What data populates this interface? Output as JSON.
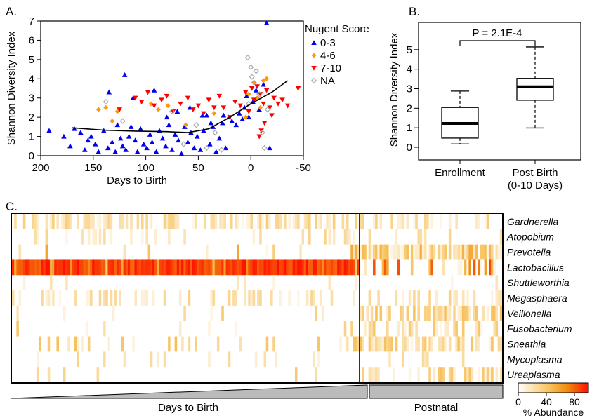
{
  "colors": {
    "cat_0_3": "#0000ee",
    "cat_4_6": "#ff9900",
    "cat_7_10": "#ff0000",
    "cat_na": "#aaaaaa",
    "heat_low": "#ffffff",
    "heat_mid": "#f39c12",
    "heat_high": "#ff1a00",
    "bar_fill": "#bbbbbb"
  },
  "chart_data": [
    {
      "panel": "A.",
      "type": "scatter",
      "xlabel": "Days to Birth",
      "ylabel": "Shannon Diversity Index",
      "x_ticks": [
        "200",
        "150",
        "100",
        "50",
        "0",
        "-50"
      ],
      "y_ticks": [
        "0",
        "1",
        "2",
        "3",
        "4",
        "5",
        "6",
        "7"
      ],
      "xlim": [
        200,
        -50
      ],
      "ylim": [
        0,
        7
      ],
      "legend_title": "Nugent Score",
      "legend_position": "right",
      "series": [
        {
          "name": "0-3",
          "marker": "triangle-up",
          "points": [
            [
              192,
              1.3
            ],
            [
              178,
              1.0
            ],
            [
              172,
              0.5
            ],
            [
              168,
              1.4
            ],
            [
              162,
              1.2
            ],
            [
              158,
              0.3
            ],
            [
              155,
              0.8
            ],
            [
              152,
              1.0
            ],
            [
              148,
              0.6
            ],
            [
              145,
              0.2
            ],
            [
              140,
              1.3
            ],
            [
              136,
              0.4
            ],
            [
              132,
              0.7
            ],
            [
              129,
              0.2
            ],
            [
              127,
              1.6
            ],
            [
              124,
              0.9
            ],
            [
              122,
              0.5
            ],
            [
              119,
              0.3
            ],
            [
              116,
              1.0
            ],
            [
              114,
              1.5
            ],
            [
              110,
              0.8
            ],
            [
              108,
              0.2
            ],
            [
              105,
              1.4
            ],
            [
              102,
              0.6
            ],
            [
              99,
              0.4
            ],
            [
              96,
              1.1
            ],
            [
              94,
              0.7
            ],
            [
              90,
              0.2
            ],
            [
              87,
              1.3
            ],
            [
              84,
              0.9
            ],
            [
              81,
              0.5
            ],
            [
              78,
              1.6
            ],
            [
              75,
              0.3
            ],
            [
              72,
              1.1
            ],
            [
              69,
              0.8
            ],
            [
              66,
              0.1
            ],
            [
              63,
              1.5
            ],
            [
              60,
              0.7
            ],
            [
              57,
              1.2
            ],
            [
              54,
              0.4
            ],
            [
              51,
              1.0
            ],
            [
              48,
              0.3
            ],
            [
              45,
              1.3
            ],
            [
              42,
              2.1
            ],
            [
              39,
              0.6
            ],
            [
              36,
              1.5
            ],
            [
              33,
              0.2
            ],
            [
              30,
              0.9
            ],
            [
              27,
              1.7
            ],
            [
              24,
              0.4
            ],
            [
              21,
              2.0
            ],
            [
              18,
              1.8
            ],
            [
              14,
              1.6
            ],
            [
              11,
              2.2
            ],
            [
              8,
              1.9
            ],
            [
              6,
              2.5
            ],
            [
              4,
              3.1
            ],
            [
              2,
              2.0
            ],
            [
              -2,
              2.8
            ],
            [
              -5,
              3.4
            ],
            [
              -8,
              2.4
            ],
            [
              -12,
              3.7
            ],
            [
              -15,
              6.9
            ],
            [
              -18,
              0.4
            ],
            [
              135,
              3.3
            ],
            [
              120,
              4.2
            ],
            [
              112,
              3.0
            ],
            [
              92,
              3.4
            ],
            [
              80,
              2.0
            ],
            [
              70,
              2.3
            ],
            [
              58,
              2.5
            ],
            [
              46,
              2.1
            ],
            [
              38,
              1.7
            ],
            [
              26,
              2.1
            ]
          ]
        },
        {
          "name": "4-6",
          "marker": "diamond",
          "points": [
            [
              145,
              2.4
            ],
            [
              138,
              2.5
            ],
            [
              132,
              1.8
            ],
            [
              127,
              2.3
            ],
            [
              95,
              2.7
            ],
            [
              88,
              2.4
            ],
            [
              79,
              2.6
            ],
            [
              62,
              1.6
            ],
            [
              35,
              2.2
            ],
            [
              5,
              2.0
            ],
            [
              2,
              3.2
            ],
            [
              -3,
              3.8
            ],
            [
              -6,
              3.0
            ],
            [
              -9,
              2.5
            ],
            [
              -12,
              3.9
            ],
            [
              -15,
              4.0
            ]
          ]
        },
        {
          "name": "7-10",
          "marker": "triangle-down",
          "points": [
            [
              125,
              2.4
            ],
            [
              110,
              3.0
            ],
            [
              104,
              2.8
            ],
            [
              98,
              3.3
            ],
            [
              92,
              2.6
            ],
            [
              85,
              2.9
            ],
            [
              80,
              3.1
            ],
            [
              74,
              2.3
            ],
            [
              67,
              2.7
            ],
            [
              60,
              3.0
            ],
            [
              55,
              2.4
            ],
            [
              50,
              2.6
            ],
            [
              45,
              2.2
            ],
            [
              40,
              2.9
            ],
            [
              35,
              2.5
            ],
            [
              30,
              3.1
            ],
            [
              26,
              2.5
            ],
            [
              20,
              2.0
            ],
            [
              15,
              2.8
            ],
            [
              10,
              2.6
            ],
            [
              5,
              3.3
            ],
            [
              2,
              2.3
            ],
            [
              -1,
              3.5
            ],
            [
              -3,
              2.9
            ],
            [
              -6,
              3.6
            ],
            [
              -9,
              3.2
            ],
            [
              -12,
              2.7
            ],
            [
              -15,
              3.4
            ],
            [
              -18,
              2.5
            ],
            [
              -22,
              3.0
            ],
            [
              -26,
              2.7
            ],
            [
              -30,
              2.9
            ],
            [
              -35,
              2.6
            ],
            [
              -45,
              3.5
            ],
            [
              -10,
              1.3
            ],
            [
              -13,
              1.7
            ],
            [
              -20,
              2.1
            ],
            [
              -8,
              1.0
            ]
          ]
        },
        {
          "name": "NA",
          "marker": "open-diamond",
          "points": [
            [
              138,
              2.8
            ],
            [
              122,
              1.8
            ],
            [
              75,
              2.3
            ],
            [
              64,
              0.6
            ],
            [
              52,
              1.6
            ],
            [
              42,
              0.4
            ],
            [
              34,
              1.2
            ],
            [
              28,
              0.3
            ],
            [
              3,
              5.1
            ],
            [
              0,
              4.6
            ],
            [
              -3,
              3.8
            ],
            [
              -5,
              4.4
            ],
            [
              -8,
              3.2
            ],
            [
              -11,
              1.2
            ],
            [
              -13,
              0.4
            ],
            [
              -16,
              2.4
            ],
            [
              2,
              2.7
            ],
            [
              -1,
              4.1
            ]
          ]
        }
      ],
      "trend_line": [
        [
          170,
          1.45
        ],
        [
          140,
          1.33
        ],
        [
          110,
          1.28
        ],
        [
          80,
          1.25
        ],
        [
          60,
          1.2
        ],
        [
          40,
          1.4
        ],
        [
          20,
          2.0
        ],
        [
          0,
          2.7
        ],
        [
          -20,
          3.3
        ],
        [
          -35,
          3.9
        ]
      ]
    },
    {
      "panel": "B.",
      "type": "box",
      "ylabel": "Shannon Diversity Index",
      "y_ticks": [
        "0",
        "1",
        "2",
        "3",
        "4",
        "5"
      ],
      "ylim": [
        0,
        6
      ],
      "annotation": "P = 2.1E-4",
      "categories": [
        "Enrollment",
        "Post Birth\n(0-10 Days)"
      ],
      "category_lines": [
        [
          "Enrollment"
        ],
        [
          "Post Birth",
          "(0-10 Days)"
        ]
      ],
      "boxes": [
        {
          "min": 0.17,
          "q1": 0.47,
          "median": 1.22,
          "q3": 2.04,
          "max": 2.88
        },
        {
          "min": 0.99,
          "q1": 2.41,
          "median": 3.1,
          "q3": 3.53,
          "max": 5.14
        }
      ]
    },
    {
      "panel": "C.",
      "type": "heatmap",
      "rows": [
        "Gardnerella",
        "Atopobium",
        "Prevotella",
        "Lactobacillus",
        "Shuttleworthia",
        "Megasphaera",
        "Veillonella",
        "Fusobacterium",
        "Sneathia",
        "Mycoplasma",
        "Ureaplasma"
      ],
      "n_columns": 220,
      "postnatal_start_column": 156,
      "bottom_labels": [
        "Days to Birth",
        "Postnatal"
      ],
      "colorbar_ticks": [
        "0",
        "40",
        "80"
      ],
      "colorbar_label": "% Abundance",
      "value_range": [
        0,
        100
      ]
    }
  ]
}
